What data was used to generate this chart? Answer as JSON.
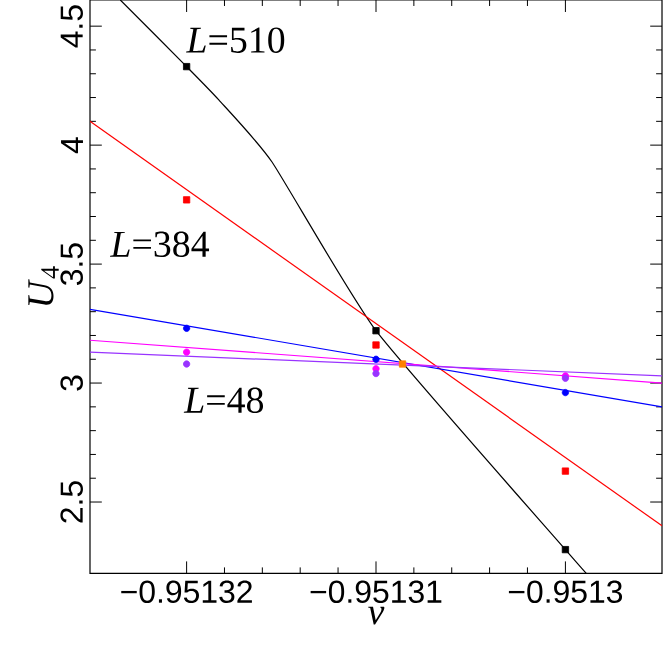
{
  "chart_data": {
    "type": "line",
    "xlabel": "v",
    "ylabel": "*U*$_{4}$",
    "xlim": [
      -0.9513251,
      -0.9512949
    ],
    "ylim": [
      2.2,
      4.61
    ],
    "xticks": [
      {
        "value": -0.95132,
        "label": "−0.95132"
      },
      {
        "value": -0.95131,
        "label": "−0.95131"
      },
      {
        "value": -0.9513,
        "label": "−0.9513"
      }
    ],
    "yticks": [
      2.5,
      3,
      3.5,
      4,
      4.5
    ],
    "series": [
      {
        "color": "#000000",
        "x": [
          -0.9513235,
          -0.95132,
          -0.9513183,
          -0.9513155,
          -0.95131,
          -0.9513,
          -0.9512989
        ],
        "values": [
          4.61,
          4.33,
          4.19,
          3.93,
          3.22,
          2.3,
          2.2
        ]
      },
      {
        "color": "#ff0000",
        "x": [
          -0.9513251,
          -0.9512949
        ],
        "values": [
          4.1,
          2.4
        ]
      },
      {
        "color": "#0000ff",
        "x": [
          -0.9513251,
          -0.9512949
        ],
        "values": [
          3.31,
          2.9
        ]
      },
      {
        "color": "#ff00ff",
        "x": [
          -0.9513251,
          -0.9512949
        ],
        "values": [
          3.18,
          3.0
        ]
      },
      {
        "color": "#9933ff",
        "x": [
          -0.9513251,
          -0.9512949
        ],
        "values": [
          3.13,
          3.03
        ]
      },
      {
        "type": "scatter",
        "marker": "square",
        "color": "#000000",
        "x": [
          -0.95132,
          -0.95131,
          -0.9513
        ],
        "values": [
          4.33,
          3.22,
          2.3
        ]
      },
      {
        "type": "scatter",
        "marker": "square",
        "color": "#ff0000",
        "x": [
          -0.95132,
          -0.95131,
          -0.9513
        ],
        "values": [
          3.77,
          3.16,
          2.63
        ]
      },
      {
        "type": "scatter",
        "marker": "circle",
        "color": "#0000ff",
        "x": [
          -0.95132,
          -0.95131,
          -0.9513
        ],
        "values": [
          3.23,
          3.1,
          2.96
        ]
      },
      {
        "type": "scatter",
        "marker": "circle",
        "color": "#ff00ff",
        "x": [
          -0.95132,
          -0.95131,
          -0.9513
        ],
        "values": [
          3.13,
          3.06,
          3.03
        ]
      },
      {
        "type": "scatter",
        "marker": "circle",
        "color": "#9933ff",
        "x": [
          -0.95132,
          -0.95131,
          -0.9513
        ],
        "values": [
          3.08,
          3.04,
          3.02
        ]
      },
      {
        "type": "scatter",
        "marker": "square",
        "color": "#ff8000",
        "x": [
          -0.9513086
        ],
        "values": [
          3.08
        ]
      }
    ],
    "annotations": [
      "*L*=510",
      "*L*=384",
      "*L*=48"
    ]
  }
}
